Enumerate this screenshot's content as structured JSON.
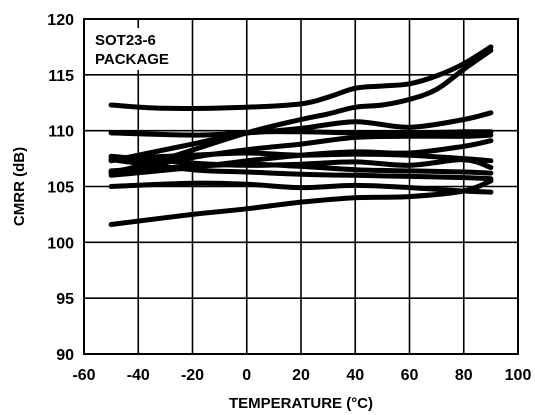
{
  "chart_data": {
    "type": "line",
    "xlabel": "TEMPERATURE (°C)",
    "ylabel": "CMRR (dB)",
    "xlim": [
      -60,
      100
    ],
    "ylim": [
      90,
      120
    ],
    "x_ticks": [
      -60,
      -40,
      -20,
      0,
      20,
      40,
      60,
      80,
      100
    ],
    "y_ticks": [
      90,
      95,
      100,
      105,
      110,
      115,
      120
    ],
    "grid": true,
    "legend": "none",
    "annotation": [
      "SOT23-6",
      "PACKAGE"
    ],
    "line_color": "#000000",
    "series": [
      {
        "x": [
          -50,
          -30,
          0,
          20,
          30,
          40,
          50,
          60,
          70,
          80,
          90
        ],
        "values": [
          112.3,
          112.0,
          112.1,
          112.4,
          113.0,
          113.8,
          114.0,
          114.2,
          114.9,
          116.0,
          117.5
        ]
      },
      {
        "x": [
          -50,
          -30,
          0,
          20,
          30,
          40,
          50,
          60,
          70,
          80,
          90
        ],
        "values": [
          106.2,
          107.5,
          109.8,
          111.0,
          111.5,
          112.1,
          112.3,
          112.8,
          113.7,
          115.5,
          117.2
        ]
      },
      {
        "x": [
          -50,
          -20,
          0,
          20,
          40,
          60,
          80,
          90
        ],
        "values": [
          109.8,
          109.6,
          109.8,
          110.2,
          110.8,
          110.3,
          111.0,
          111.6
        ]
      },
      {
        "x": [
          -50,
          -20,
          0,
          20,
          40,
          60,
          80,
          90
        ],
        "values": [
          107.3,
          108.8,
          109.8,
          109.9,
          109.8,
          109.8,
          109.9,
          109.9
        ]
      },
      {
        "x": [
          -50,
          -20,
          0,
          20,
          40,
          60,
          80,
          90
        ],
        "values": [
          106.3,
          107.6,
          108.3,
          108.8,
          109.4,
          109.5,
          109.5,
          109.6
        ]
      },
      {
        "x": [
          -50,
          -20,
          0,
          20,
          40,
          60,
          80,
          90
        ],
        "values": [
          106.0,
          106.7,
          107.3,
          107.8,
          108.1,
          108.0,
          108.6,
          109.1
        ]
      },
      {
        "x": [
          -50,
          -20,
          0,
          20,
          40,
          60,
          80,
          90
        ],
        "values": [
          107.5,
          107.8,
          108.0,
          107.8,
          107.9,
          107.8,
          107.5,
          107.3
        ]
      },
      {
        "x": [
          -50,
          -20,
          0,
          20,
          40,
          60,
          80,
          90
        ],
        "values": [
          107.7,
          107.1,
          106.9,
          107.0,
          107.2,
          106.9,
          107.4,
          106.7
        ]
      },
      {
        "x": [
          -50,
          -20,
          0,
          20,
          40,
          60,
          80,
          90
        ],
        "values": [
          106.4,
          106.8,
          107.0,
          106.8,
          106.5,
          106.4,
          106.3,
          106.2
        ]
      },
      {
        "x": [
          -50,
          -20,
          0,
          20,
          40,
          60,
          80,
          90
        ],
        "values": [
          107.4,
          106.5,
          106.3,
          106.1,
          106.0,
          105.9,
          105.8,
          105.7
        ]
      },
      {
        "x": [
          -50,
          -20,
          0,
          20,
          40,
          60,
          80,
          90
        ],
        "values": [
          105.0,
          105.3,
          105.2,
          104.9,
          105.1,
          104.9,
          104.6,
          104.5
        ]
      },
      {
        "x": [
          -50,
          -20,
          0,
          20,
          40,
          60,
          80,
          90
        ],
        "values": [
          101.6,
          102.5,
          103.0,
          103.6,
          104.0,
          104.1,
          104.6,
          105.5
        ]
      }
    ]
  }
}
